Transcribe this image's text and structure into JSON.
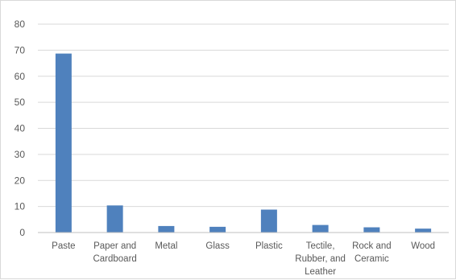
{
  "chart_data": {
    "type": "bar",
    "title": "",
    "xlabel": "",
    "ylabel": "",
    "ylim": [
      0,
      80
    ],
    "yticks": [
      0,
      10,
      20,
      30,
      40,
      50,
      60,
      70,
      80
    ],
    "grid": true,
    "legend": "none",
    "categories": [
      [
        "Paste"
      ],
      [
        "Paper and",
        "Cardboard"
      ],
      [
        "Metal"
      ],
      [
        "Glass"
      ],
      [
        "Plastic"
      ],
      [
        "Tectile,",
        "Rubber, and",
        "Leather"
      ],
      [
        "Rock and",
        "Ceramic"
      ],
      [
        "Wood"
      ]
    ],
    "values": [
      68.7,
      10.4,
      2.5,
      2.2,
      8.8,
      2.9,
      2.0,
      1.5
    ],
    "colors": {
      "bar": "#4f81bd",
      "grid": "#d9d9d9",
      "axis": "#bfbfbf",
      "text": "#595959"
    }
  }
}
